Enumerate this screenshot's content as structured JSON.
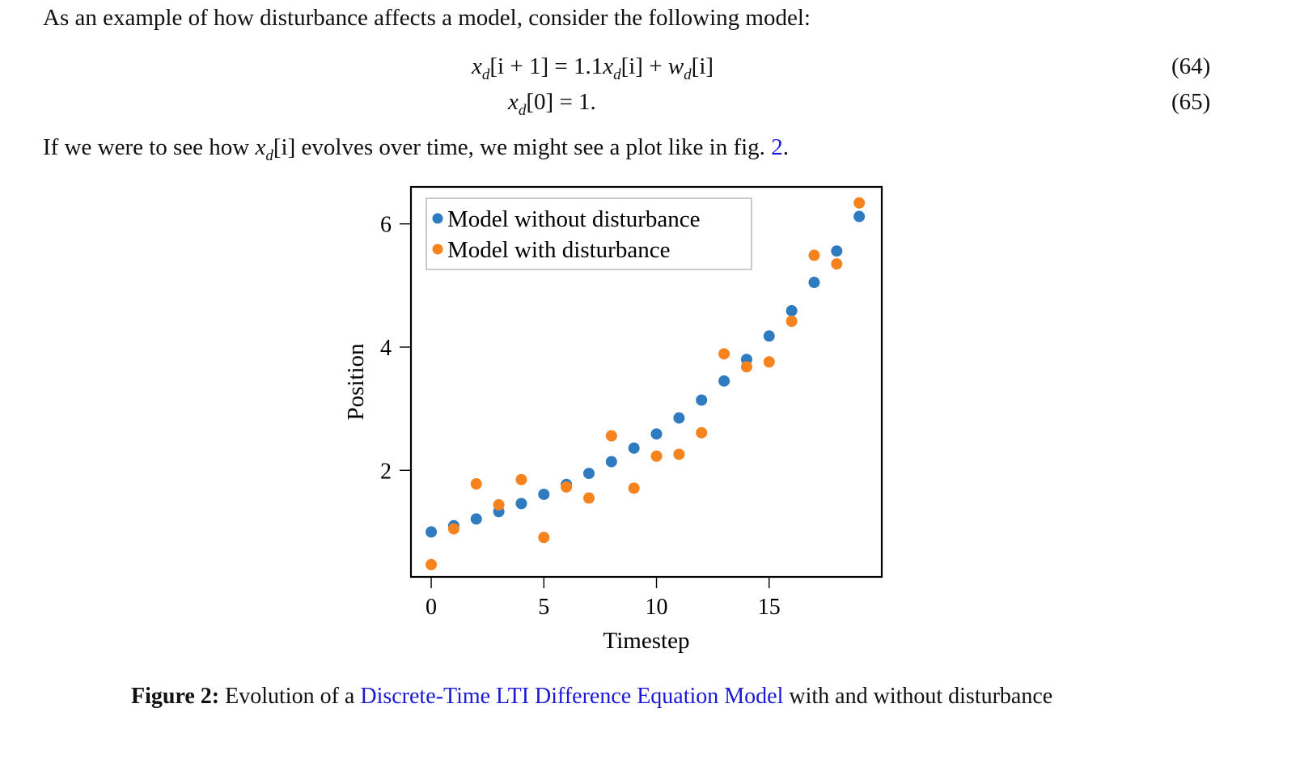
{
  "paragraphs": {
    "intro": "As an example of how disturbance affects a model, consider the following model:",
    "p2_pre": "If we were to see how ",
    "p2_var": "x",
    "p2_sub": "d",
    "p2_idx": "[i]",
    "p2_post": " evolves over time, we might see a plot like in fig. ",
    "p2_ref": "2",
    "p2_end": "."
  },
  "equations": [
    {
      "lhs_var": "x",
      "lhs_sub": "d",
      "lhs_idx": "[i + 1] = 1.1",
      "rhs1_var": "x",
      "rhs1_sub": "d",
      "rhs1_idx": "[i] + ",
      "rhs2_var": "w",
      "rhs2_sub": "d",
      "rhs2_idx": "[i]",
      "number": "(64)"
    },
    {
      "lhs_var": "x",
      "lhs_sub": "d",
      "lhs_idx": "[0] = 1.",
      "number": "(65)"
    }
  ],
  "chart_data": {
    "type": "scatter",
    "xlabel": "Timestep",
    "ylabel": "Position",
    "xlim": [
      -0.9,
      20.0
    ],
    "ylim": [
      0.27,
      6.6
    ],
    "xticks": [
      0,
      5,
      10,
      15
    ],
    "yticks": [
      2,
      4,
      6
    ],
    "grid": false,
    "legend": "top-left",
    "series": [
      {
        "name": "Model without disturbance",
        "color": "#2f7bbf",
        "x": [
          0,
          1,
          2,
          3,
          4,
          5,
          6,
          7,
          8,
          9,
          10,
          11,
          12,
          13,
          14,
          15,
          16,
          17,
          18,
          19
        ],
        "y": [
          1.0,
          1.1,
          1.21,
          1.33,
          1.46,
          1.61,
          1.77,
          1.95,
          2.14,
          2.36,
          2.59,
          2.85,
          3.14,
          3.45,
          3.8,
          4.18,
          4.59,
          5.05,
          5.56,
          6.12
        ]
      },
      {
        "name": "Model with disturbance",
        "color": "#f7831f",
        "x": [
          0,
          1,
          2,
          3,
          4,
          5,
          6,
          7,
          8,
          9,
          10,
          11,
          12,
          13,
          14,
          15,
          16,
          17,
          18,
          19
        ],
        "y": [
          0.47,
          1.05,
          1.78,
          1.44,
          1.85,
          0.91,
          1.73,
          1.55,
          2.56,
          1.71,
          2.23,
          2.26,
          2.61,
          3.89,
          3.68,
          3.76,
          4.42,
          5.49,
          5.35,
          6.34
        ]
      }
    ]
  },
  "caption": {
    "label": "Figure 2:",
    "pre": " Evolution of a ",
    "link": "Discrete-Time LTI Difference Equation Model",
    "post": " with and without disturbance"
  }
}
